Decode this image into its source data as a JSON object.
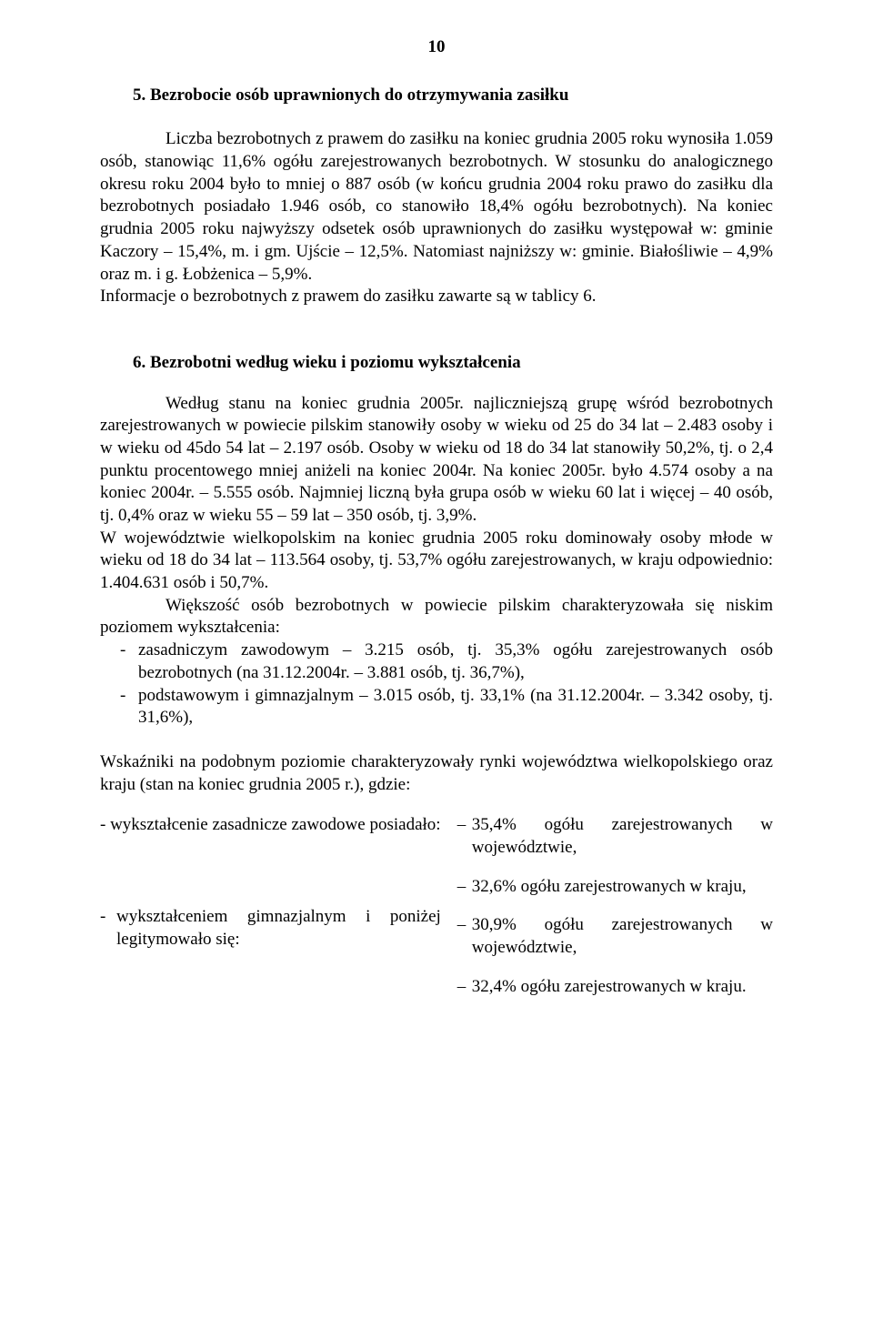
{
  "page_number": "10",
  "section5": {
    "heading": "5. Bezrobocie osób uprawnionych do otrzymywania zasiłku",
    "para": "Liczba bezrobotnych z prawem do zasiłku na koniec grudnia 2005 roku wynosiła 1.059 osób, stanowiąc 11,6% ogółu zarejestrowanych bezrobotnych. W stosunku do analogicznego okresu roku 2004 było to mniej o 887 osób (w końcu grudnia 2004 roku prawo do zasiłku dla bezrobotnych posiadało 1.946 osób, co stanowiło 18,4% ogółu bezrobotnych). Na koniec grudnia 2005 roku najwyższy odsetek osób uprawnionych do zasiłku występował w: gminie Kaczory – 15,4%, m. i gm. Ujście – 12,5%. Natomiast najniższy w: gminie. Białośliwie – 4,9% oraz m. i g. Łobżenica – 5,9%.",
    "para2": "Informacje o bezrobotnych z prawem do zasiłku zawarte są w tablicy 6."
  },
  "section6": {
    "heading": "6. Bezrobotni według wieku i poziomu wykształcenia",
    "para1": "Według stanu na koniec grudnia 2005r. najliczniejszą grupę wśród bezrobotnych zarejestrowanych w powiecie pilskim stanowiły osoby w wieku od 25 do 34 lat – 2.483 osoby i w wieku od 45do 54 lat – 2.197 osób. Osoby w wieku od 18 do 34 lat stanowiły 50,2%, tj. o 2,4 punktu procentowego mniej aniżeli na koniec 2004r. Na koniec 2005r. było 4.574 osoby a na koniec 2004r. – 5.555 osób. Najmniej liczną była grupa osób w wieku 60 lat i więcej – 40 osób, tj. 0,4% oraz w wieku 55 – 59 lat – 350 osób, tj. 3,9%.",
    "para2": "W województwie wielkopolskim na koniec grudnia 2005 roku dominowały osoby młode w wieku od 18 do 34 lat – 113.564 osoby, tj. 53,7% ogółu zarejestrowanych, w kraju odpowiednio: 1.404.631 osób i 50,7%.",
    "para3": "Większość osób bezrobotnych w powiecie pilskim charakteryzowała się niskim poziomem wykształcenia:",
    "bullet1": "zasadniczym zawodowym – 3.215 osób, tj. 35,3% ogółu zarejestrowanych osób bezrobotnych (na 31.12.2004r. – 3.881 osób, tj. 36,7%),",
    "bullet2": "podstawowym i gimnazjalnym – 3.015 osób, tj. 33,1% (na 31.12.2004r. – 3.342 osoby, tj. 31,6%),"
  },
  "wskazniki": {
    "heading": "Wskaźniki na podobnym poziomie charakteryzowały rynki województwa wielkopolskiego oraz kraju (stan na koniec grudnia 2005 r.), gdzie:",
    "left1": "- wykształcenie zasadnicze zawodowe posiadało:",
    "right1": "35,4% ogółu zarejestrowanych w województwie,",
    "right2": "32,6% ogółu zarejestrowanych w kraju,",
    "left2": "wykształceniem gimnazjalnym i poniżej legitymowało się:",
    "right3": "30,9% ogółu zarejestrowanych w województwie,",
    "right4": "32,4% ogółu zarejestrowanych w kraju."
  }
}
